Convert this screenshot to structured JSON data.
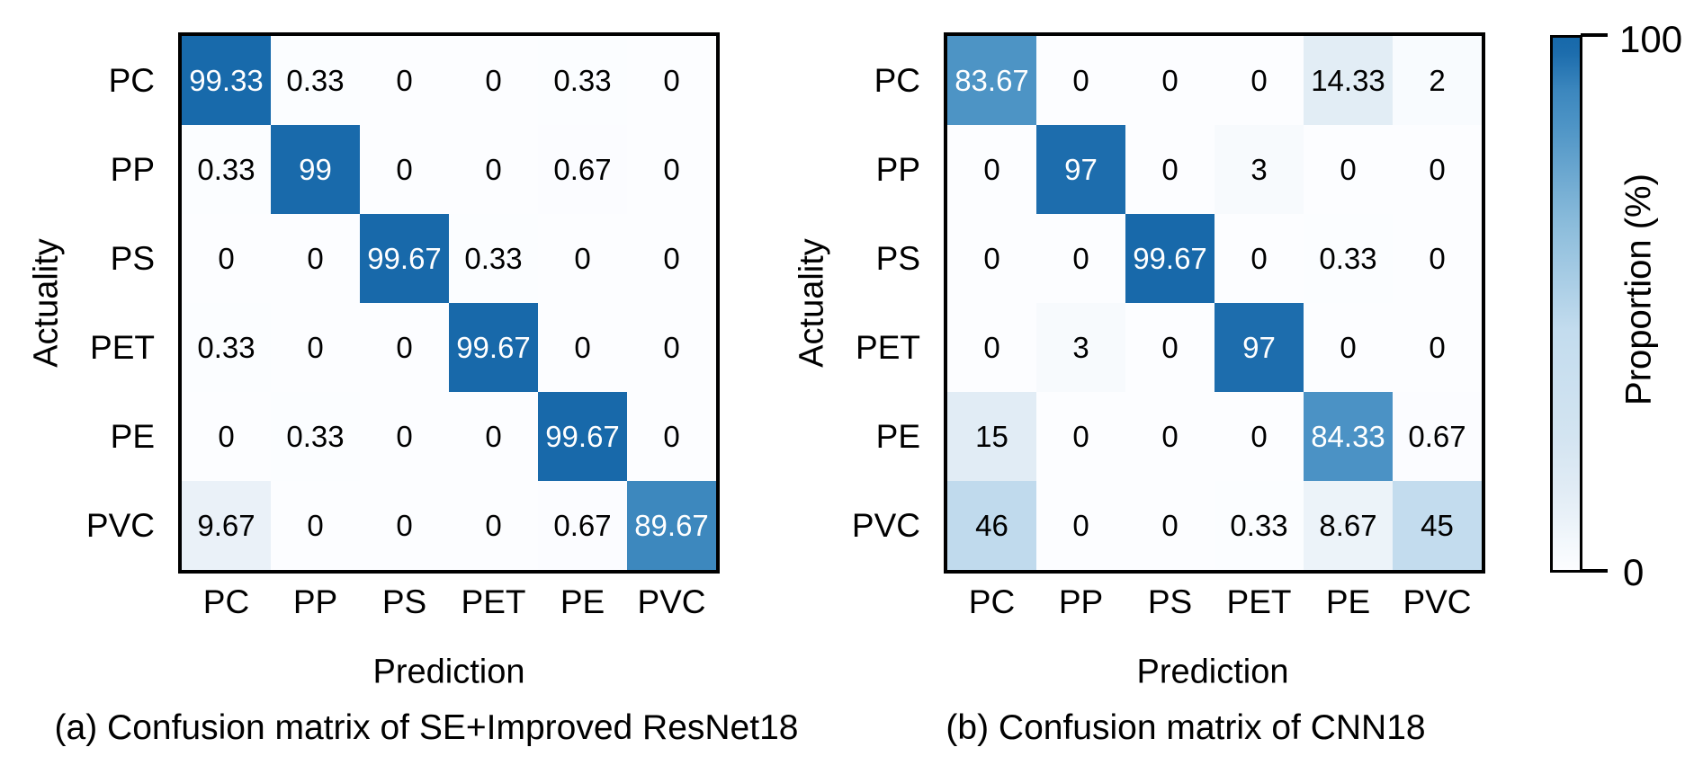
{
  "ui": {
    "background": "#ffffff",
    "colorbar": {
      "label": "Proportion (%)",
      "max_label": "100",
      "min_label": "0"
    }
  },
  "colors": {
    "frame": "#000000",
    "text": "#000000",
    "cell_text_light": "#ffffff",
    "white_text_min": 60,
    "scale_stops": [
      [
        0,
        "#fcfdff"
      ],
      [
        5,
        "#f3f8fc"
      ],
      [
        10,
        "#e9f1f8"
      ],
      [
        15,
        "#e1ecf5"
      ],
      [
        25,
        "#d3e4f1"
      ],
      [
        45,
        "#c3dcee"
      ],
      [
        65,
        "#8bbcdb"
      ],
      [
        84,
        "#4c93c5"
      ],
      [
        90,
        "#3c87be"
      ],
      [
        97,
        "#1d6dad"
      ],
      [
        100,
        "#1769aa"
      ]
    ]
  },
  "chart_data": [
    {
      "type": "heatmap",
      "title": "(a) Confusion matrix of SE+Improved ResNet18",
      "xlabel": "Prediction",
      "ylabel": "Actuality",
      "x_categories": [
        "PC",
        "PP",
        "PS",
        "PET",
        "PE",
        "PVC"
      ],
      "y_categories": [
        "PC",
        "PP",
        "PS",
        "PET",
        "PE",
        "PVC"
      ],
      "values": [
        [
          99.33,
          0.33,
          0,
          0,
          0.33,
          0
        ],
        [
          0.33,
          99,
          0,
          0,
          0.67,
          0
        ],
        [
          0,
          0,
          99.67,
          0.33,
          0,
          0
        ],
        [
          0.33,
          0,
          0,
          99.67,
          0,
          0
        ],
        [
          0,
          0.33,
          0,
          0,
          99.67,
          0
        ],
        [
          9.67,
          0,
          0,
          0,
          0.67,
          89.67
        ]
      ],
      "colorbar_label": "Proportion (%)",
      "colorbar_range": [
        0,
        100
      ],
      "grid": false,
      "value_labels_shown": true
    },
    {
      "type": "heatmap",
      "title": "(b) Confusion matrix of CNN18",
      "xlabel": "Prediction",
      "ylabel": "Actuality",
      "x_categories": [
        "PC",
        "PP",
        "PS",
        "PET",
        "PE",
        "PVC"
      ],
      "y_categories": [
        "PC",
        "PP",
        "PS",
        "PET",
        "PE",
        "PVC"
      ],
      "values": [
        [
          83.67,
          0,
          0,
          0,
          14.33,
          2
        ],
        [
          0,
          97,
          0,
          3,
          0,
          0
        ],
        [
          0,
          0,
          99.67,
          0,
          0.33,
          0
        ],
        [
          0,
          3,
          0,
          97,
          0,
          0
        ],
        [
          15,
          0,
          0,
          0,
          84.33,
          0.67
        ],
        [
          46,
          0,
          0,
          0.33,
          8.67,
          45
        ]
      ],
      "colorbar_label": "Proportion (%)",
      "colorbar_range": [
        0,
        100
      ],
      "grid": false,
      "value_labels_shown": true
    }
  ]
}
